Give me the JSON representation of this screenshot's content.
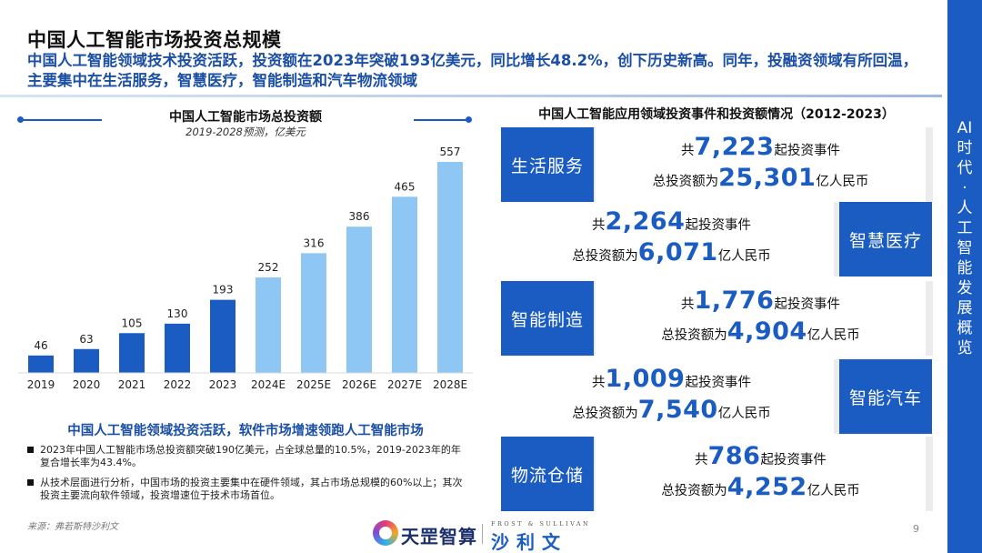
{
  "header": {
    "title": "中国人工智能市场投资总规模",
    "subtitle": "中国人工智能领域技术投资活跃，投资额在2023年突破193亿美元，同比增长48.2%，创下历史新高。同年，投融资领域有所回温，主要集中在生活服务，智慧医疗，智能制造和汽车物流领域"
  },
  "side_label": [
    "AI",
    "时",
    "代",
    "·",
    "人",
    "工",
    "智",
    "能",
    "发",
    "展",
    "概",
    "览"
  ],
  "chart_data": {
    "type": "bar",
    "title": "中国人工智能市场总投资额",
    "subtitle": "2019-2028预测，亿美元",
    "categories": [
      "2019",
      "2020",
      "2021",
      "2022",
      "2023",
      "2024E",
      "2025E",
      "2026E",
      "2027E",
      "2028E"
    ],
    "values": [
      46,
      63,
      105,
      130,
      193,
      252,
      316,
      386,
      465,
      557
    ],
    "series_colors": [
      "#1b5cc2",
      "#1b5cc2",
      "#1b5cc2",
      "#1b5cc2",
      "#1b5cc2",
      "#8ec7f3",
      "#8ec7f3",
      "#8ec7f3",
      "#8ec7f3",
      "#8ec7f3"
    ],
    "ylim": [
      0,
      600
    ],
    "grid": false,
    "legend": "none"
  },
  "analysis": {
    "title": "中国人工智能领域投资活跃，软件市场增速领跑人工智能市场",
    "bullets": [
      "2023年中国人工智能市场总投资额突破190亿美元，占全球总量的10.5%，2019-2023年的年复合增长率为43.4%。",
      "从技术层面进行分析，中国市场的投资主要集中在硬件领域，其占市场总规模的60%以上；其次投资主要流向软件领域，投资增速位于技术市场首位。"
    ]
  },
  "right_panel": {
    "title": "中国人工智能应用领域投资事件和投资额情况（2012-2023）",
    "items": [
      {
        "tag": "生活服务",
        "events": "7,223",
        "amount": "25,301"
      },
      {
        "tag": "智慧医疗",
        "events": "2,264",
        "amount": "6,071"
      },
      {
        "tag": "智能制造",
        "events": "1,776",
        "amount": "4,904"
      },
      {
        "tag": "智能汽车",
        "events": "1,009",
        "amount": "7,540"
      },
      {
        "tag": "物流仓储",
        "events": "786",
        "amount": "4,252"
      }
    ],
    "prefix_events": "共",
    "suffix_events": "起投资事件",
    "prefix_amount": "总投资额为",
    "suffix_amount": "亿人民币"
  },
  "footer": {
    "source": "来源：弗若斯特沙利文",
    "page": "9",
    "logo_text": "天罡智算",
    "logo_en": "FROST & SULLIVAN",
    "logo_cn": "沙利文"
  },
  "colors": {
    "accent": "#1b5cc2",
    "forecast": "#8ec7f3",
    "subtitle": "#1b4fa3"
  }
}
